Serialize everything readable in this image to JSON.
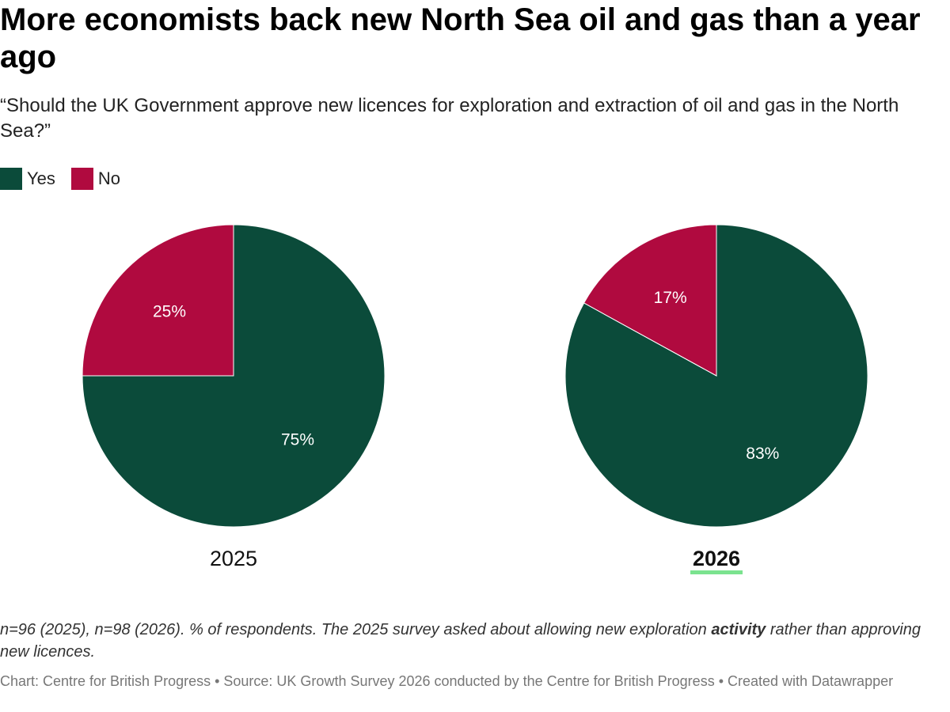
{
  "header": {
    "title": "More economists back new North Sea oil and gas than a year ago",
    "subtitle": "“Should the UK Government approve new licences for exploration and extraction of oil and gas in the North Sea?”"
  },
  "legend": {
    "items": [
      {
        "label": "Yes",
        "color": "#0b4b3a"
      },
      {
        "label": "No",
        "color": "#b00a3f"
      }
    ]
  },
  "chart_data": [
    {
      "type": "pie",
      "label": "2025",
      "highlighted": false,
      "slices": [
        {
          "name": "Yes",
          "value": 75,
          "label": "75%",
          "color": "#0b4b3a"
        },
        {
          "name": "No",
          "value": 25,
          "label": "25%",
          "color": "#b00a3f"
        }
      ]
    },
    {
      "type": "pie",
      "label": "2026",
      "highlighted": true,
      "slices": [
        {
          "name": "Yes",
          "value": 83,
          "label": "83%",
          "color": "#0b4b3a"
        },
        {
          "name": "No",
          "value": 17,
          "label": "17%",
          "color": "#b00a3f"
        }
      ]
    }
  ],
  "highlight_color": "#7be38f",
  "notes": {
    "part1": "n=96 (2025), n=98 (2026). % of respondents. The 2025 survey asked about allowing new exploration ",
    "bold": "activity",
    "part2": " rather than approving new licences."
  },
  "footer": {
    "text": "Chart: Centre for British Progress • Source: UK Growth Survey 2026 conducted by the Centre for British Progress • Created with Datawrapper"
  }
}
